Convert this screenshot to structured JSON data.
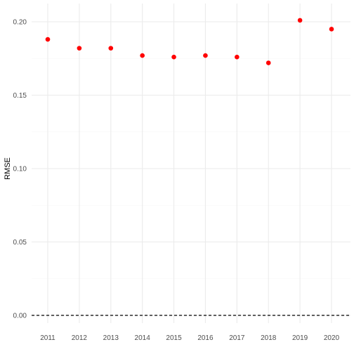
{
  "chart_data": {
    "type": "scatter",
    "title": "",
    "xlabel": "",
    "ylabel": "RMSE",
    "x": [
      "2011",
      "2012",
      "2013",
      "2014",
      "2015",
      "2016",
      "2017",
      "2018",
      "2019",
      "2020"
    ],
    "series": [
      {
        "values": [
          0.188,
          0.182,
          0.182,
          0.177,
          0.176,
          0.177,
          0.176,
          0.172,
          0.201,
          0.195
        ],
        "color": "#ff0000"
      }
    ],
    "ylim": [
      0,
      0.2
    ],
    "yticks": [
      0,
      0.05,
      0.1,
      0.15,
      0.2
    ],
    "ytick_labels": [
      "0.00",
      "0.05",
      "0.10",
      "0.15",
      "0.20"
    ],
    "reference_line": {
      "y": 0,
      "style": "dashed",
      "color": "#000000"
    },
    "grid": true,
    "grid_color": "#ebebeb",
    "legend": "none"
  }
}
